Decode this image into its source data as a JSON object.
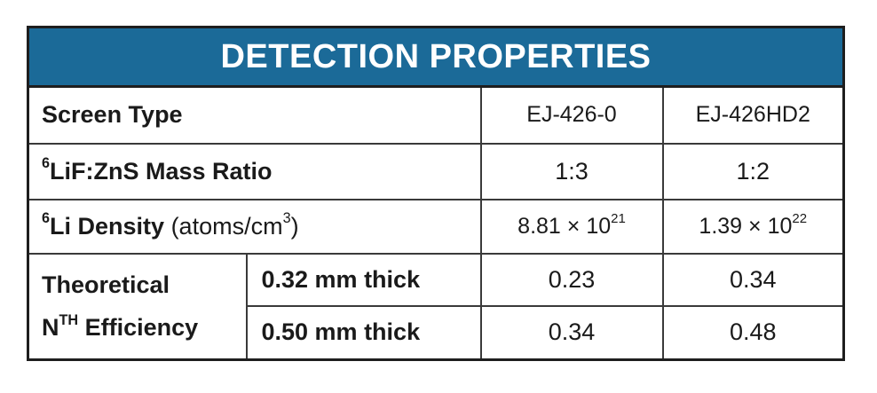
{
  "title": "DETECTION PROPERTIES",
  "rows": {
    "screen_type": {
      "label": "Screen Type",
      "values": [
        "EJ-426-0",
        "EJ-426HD2"
      ]
    },
    "mass_ratio": {
      "label_sup": "6",
      "label": "LiF:ZnS Mass Ratio",
      "values": [
        "1:3",
        "1:2"
      ]
    },
    "li_density": {
      "label_sup": "6",
      "label": "Li Density",
      "unit_pre": "(atoms/cm",
      "unit_sup": "3",
      "unit_post": ")",
      "values": [
        {
          "mantissa": "8.81 × 10",
          "exponent": "21"
        },
        {
          "mantissa": "1.39 × 10",
          "exponent": "22"
        }
      ]
    },
    "efficiency": {
      "label_line1": "Theoretical",
      "label_line2_pre": "N",
      "label_line2_sup": "TH",
      "label_line2_post": " Efficiency",
      "thicknesses": [
        {
          "label": "0.32 mm thick",
          "values": [
            "0.23",
            "0.34"
          ]
        },
        {
          "label": "0.50 mm thick",
          "values": [
            "0.34",
            "0.48"
          ]
        }
      ]
    }
  }
}
